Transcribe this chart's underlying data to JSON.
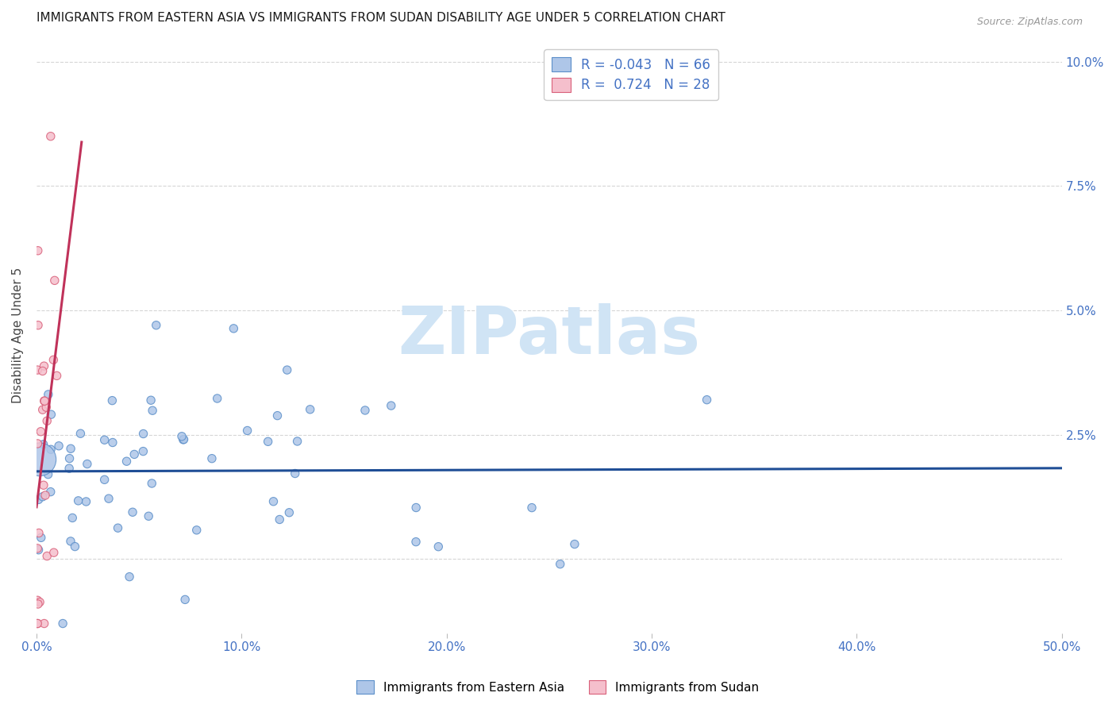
{
  "title": "IMMIGRANTS FROM EASTERN ASIA VS IMMIGRANTS FROM SUDAN DISABILITY AGE UNDER 5 CORRELATION CHART",
  "source": "Source: ZipAtlas.com",
  "ylabel": "Disability Age Under 5",
  "xlim": [
    0.0,
    0.5
  ],
  "ylim": [
    -0.015,
    0.105
  ],
  "yticks": [
    0.0,
    0.025,
    0.05,
    0.075,
    0.1
  ],
  "ytick_labels": [
    "",
    "2.5%",
    "5.0%",
    "7.5%",
    "10.0%"
  ],
  "xticks": [
    0.0,
    0.1,
    0.2,
    0.3,
    0.4,
    0.5
  ],
  "xtick_labels": [
    "0.0%",
    "10.0%",
    "20.0%",
    "30.0%",
    "40.0%",
    "50.0%"
  ],
  "series_blue": {
    "name": "Immigrants from Eastern Asia",
    "color": "#aec6e8",
    "edge_color": "#5b8fc9",
    "R": -0.043,
    "N": 66
  },
  "series_pink": {
    "name": "Immigrants from Sudan",
    "color": "#f5bfcc",
    "edge_color": "#d9607a",
    "R": 0.724,
    "N": 28
  },
  "line_blue_color": "#1f4e96",
  "line_pink_color": "#c0325a",
  "watermark": "ZIPatlas",
  "watermark_color": "#d0e4f5",
  "background_color": "#ffffff",
  "grid_color": "#cccccc",
  "title_fontsize": 11,
  "axis_tick_color": "#4472c4"
}
